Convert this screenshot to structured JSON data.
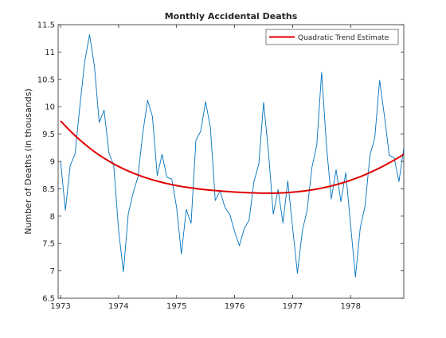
{
  "chart_data": {
    "type": "line",
    "title": "Monthly Accidental Deaths",
    "xlabel": "",
    "ylabel": "Number of Deaths (in thousands)",
    "xlim": [
      1972.9583,
      1978.9167
    ],
    "ylim": [
      6.5,
      11.5
    ],
    "x_ticks": [
      "1973",
      "1974",
      "1975",
      "1976",
      "1977",
      "1978"
    ],
    "y_ticks": [
      "6.5",
      "7",
      "7.5",
      "8",
      "8.5",
      "9",
      "9.5",
      "10",
      "10.5",
      "11",
      "11.5"
    ],
    "x_start": "1973-01",
    "x_step_months": 1,
    "grid": false,
    "legend_position": "top-right",
    "series": [
      {
        "name": "",
        "color": "#0072BD",
        "values": [
          9.007,
          8.106,
          8.928,
          9.137,
          10.017,
          10.826,
          11.317,
          10.744,
          9.713,
          9.938,
          9.161,
          8.927,
          7.75,
          6.981,
          8.038,
          8.422,
          8.714,
          9.512,
          10.12,
          9.823,
          8.743,
          9.129,
          8.71,
          8.68,
          8.162,
          7.306,
          8.124,
          7.87,
          9.387,
          9.556,
          10.093,
          9.62,
          8.285,
          8.466,
          8.16,
          8.034,
          7.717,
          7.461,
          7.776,
          7.925,
          8.634,
          8.945,
          10.078,
          9.179,
          8.037,
          8.488,
          7.874,
          8.647,
          7.792,
          6.957,
          7.726,
          8.106,
          8.89,
          9.299,
          10.625,
          9.302,
          8.314,
          8.85,
          8.265,
          8.796,
          7.836,
          6.892,
          7.791,
          8.192,
          9.115,
          9.434,
          10.484,
          9.827,
          9.11,
          9.07,
          8.633,
          9.24
        ]
      },
      {
        "name": "Quadratic Trend Estimate",
        "color": "#E00000",
        "values": [
          9.742,
          9.647,
          9.557,
          9.472,
          9.392,
          9.317,
          9.245,
          9.178,
          9.116,
          9.059,
          9.005,
          8.955,
          8.908,
          8.865,
          8.825,
          8.788,
          8.754,
          8.722,
          8.692,
          8.665,
          8.64,
          8.617,
          8.596,
          8.577,
          8.559,
          8.543,
          8.529,
          8.516,
          8.504,
          8.493,
          8.484,
          8.475,
          8.467,
          8.46,
          8.453,
          8.447,
          8.441,
          8.436,
          8.432,
          8.428,
          8.425,
          8.422,
          8.421,
          8.42,
          8.421,
          8.423,
          8.426,
          8.431,
          8.438,
          8.446,
          8.456,
          8.467,
          8.48,
          8.495,
          8.512,
          8.531,
          8.552,
          8.575,
          8.6,
          8.627,
          8.656,
          8.688,
          8.722,
          8.758,
          8.797,
          8.838,
          8.881,
          8.926,
          8.974,
          9.024,
          9.076,
          9.13
        ]
      }
    ]
  }
}
